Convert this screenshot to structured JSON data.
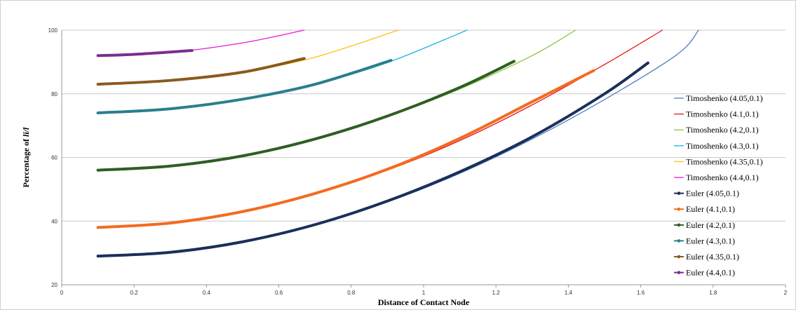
{
  "chart_data": {
    "type": "line",
    "title": "",
    "xlabel": "Distance of Contact Node",
    "ylabel_prefix": "Percentage of ",
    "ylabel_italic": "li/l",
    "xlim": [
      0,
      2
    ],
    "ylim": [
      20,
      100
    ],
    "x_ticks": [
      "0",
      "0.2",
      "0.4",
      "0.6",
      "0.8",
      "1",
      "1.2",
      "1.4",
      "1.6",
      "1.8",
      "2"
    ],
    "y_ticks": [
      "20",
      "40",
      "60",
      "80",
      "100"
    ],
    "grid": "horizontal",
    "legend_position": "right",
    "series": [
      {
        "name": "Timoshenko (4.05,0.1)",
        "kind": "timoshenko",
        "color": "#4F81BD",
        "x": [
          0.1,
          0.3,
          0.5,
          0.7,
          0.9,
          1.1,
          1.3,
          1.5,
          1.7,
          1.76
        ],
        "y": [
          29.0,
          30.2,
          33.5,
          38.8,
          46.0,
          55.0,
          65.8,
          78.2,
          92.3,
          100.0
        ]
      },
      {
        "name": "Timoshenko (4.1,0.1)",
        "kind": "timoshenko",
        "color": "#E31A1C",
        "x": [
          0.1,
          0.3,
          0.5,
          0.7,
          0.9,
          1.1,
          1.3,
          1.5,
          1.66
        ],
        "y": [
          38.0,
          39.4,
          43.0,
          48.5,
          56.0,
          65.3,
          76.5,
          89.2,
          100.0
        ]
      },
      {
        "name": "Timoshenko (4.2,0.1)",
        "kind": "timoshenko",
        "color": "#8CC63F",
        "x": [
          0.1,
          0.3,
          0.5,
          0.7,
          0.9,
          1.1,
          1.3,
          1.42
        ],
        "y": [
          56.0,
          57.3,
          60.5,
          65.8,
          72.8,
          81.5,
          92.0,
          100.0
        ]
      },
      {
        "name": "Timoshenko (4.3,0.1)",
        "kind": "timoshenko",
        "color": "#1FB5E8",
        "x": [
          0.1,
          0.3,
          0.5,
          0.7,
          0.9,
          1.12
        ],
        "y": [
          74.0,
          75.3,
          78.3,
          83.0,
          89.8,
          100.0
        ]
      },
      {
        "name": "Timoshenko (4.35,0.1)",
        "kind": "timoshenko",
        "color": "#F5C518",
        "x": [
          0.1,
          0.3,
          0.5,
          0.7,
          0.93
        ],
        "y": [
          83.0,
          84.2,
          86.8,
          91.5,
          100.0
        ]
      },
      {
        "name": "Timoshenko (4.4,0.1)",
        "kind": "timoshenko",
        "color": "#E619D8",
        "x": [
          0.1,
          0.3,
          0.5,
          0.67
        ],
        "y": [
          92.0,
          93.0,
          96.0,
          100.0
        ]
      },
      {
        "name": "Euler (4.05,0.1)",
        "kind": "euler",
        "color": "#1B2F5A",
        "x": [
          0.1,
          0.3,
          0.5,
          0.7,
          0.9,
          1.1,
          1.3,
          1.5,
          1.62
        ],
        "y": [
          29.0,
          30.2,
          33.5,
          38.9,
          46.3,
          55.5,
          66.5,
          80.0,
          89.7
        ]
      },
      {
        "name": "Euler (4.1,0.1)",
        "kind": "euler",
        "color": "#F36B21",
        "x": [
          0.1,
          0.3,
          0.5,
          0.7,
          0.9,
          1.1,
          1.3,
          1.47
        ],
        "y": [
          38.0,
          39.4,
          43.0,
          48.7,
          56.3,
          66.0,
          77.5,
          87.3
        ]
      },
      {
        "name": "Euler (4.2,0.1)",
        "kind": "euler",
        "color": "#2E5E24",
        "x": [
          0.1,
          0.3,
          0.5,
          0.7,
          0.9,
          1.1,
          1.25
        ],
        "y": [
          56.0,
          57.3,
          60.5,
          65.8,
          73.0,
          82.0,
          90.2
        ]
      },
      {
        "name": "Euler (4.3,0.1)",
        "kind": "euler",
        "color": "#2A7F8C",
        "x": [
          0.1,
          0.3,
          0.5,
          0.7,
          0.91
        ],
        "y": [
          74.0,
          75.3,
          78.3,
          83.0,
          90.5
        ]
      },
      {
        "name": "Euler (4.35,0.1)",
        "kind": "euler",
        "color": "#8B5A1E",
        "x": [
          0.1,
          0.3,
          0.5,
          0.67
        ],
        "y": [
          83.0,
          84.2,
          86.8,
          91.1
        ]
      },
      {
        "name": "Euler (4.4,0.1)",
        "kind": "euler",
        "color": "#7B2D8E",
        "x": [
          0.1,
          0.2,
          0.36
        ],
        "y": [
          92.0,
          92.4,
          93.6
        ]
      }
    ]
  }
}
